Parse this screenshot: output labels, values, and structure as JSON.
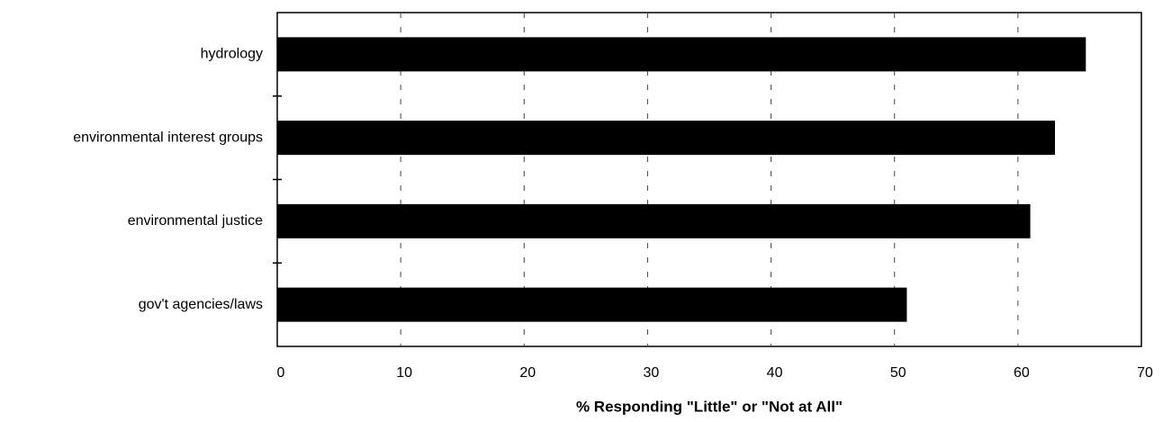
{
  "chart_data": {
    "type": "hbar",
    "xlabel": "% Responding \"Little\" or \"Not at All\"",
    "categories": [
      "hydrology",
      "environmental interest groups",
      "environmental justice",
      "gov't agencies/laws"
    ],
    "values": [
      65.5,
      63,
      61,
      51
    ],
    "color": "#000000",
    "xlim": [
      0,
      70
    ],
    "xticks": [
      0,
      10,
      20,
      30,
      40,
      50,
      60,
      70
    ],
    "grid": true
  }
}
